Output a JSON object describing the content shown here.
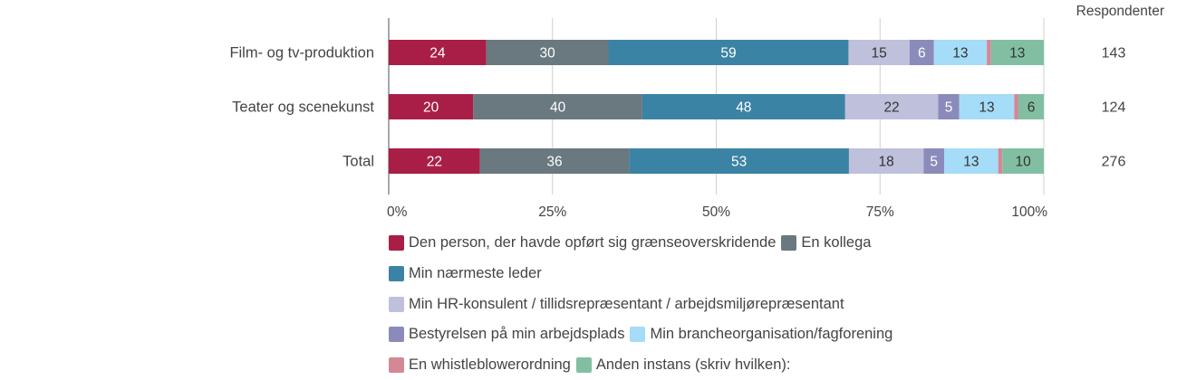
{
  "chart_data": {
    "type": "bar",
    "orientation": "horizontal",
    "stacked": "percent",
    "categories": [
      "Film- og tv-produktion",
      "Teater og scenekunst",
      "Total"
    ],
    "respondents_header": "Respondenter",
    "respondents": [
      "143",
      "124",
      "276"
    ],
    "series": [
      {
        "name": "Den person, der havde opført sig grænseoverskridende",
        "color": "#a91e46",
        "values": [
          24,
          20,
          22
        ]
      },
      {
        "name": "En kollega",
        "color": "#6a787f",
        "values": [
          30,
          40,
          36
        ]
      },
      {
        "name": "Min nærmeste leder",
        "color": "#3b83a4",
        "values": [
          59,
          48,
          53
        ]
      },
      {
        "name": "Min HR-konsulent / tillidsrepræsentant / arbejdsmiljørepræsentant",
        "color": "#bec0dc",
        "values": [
          15,
          22,
          18
        ]
      },
      {
        "name": "Bestyrelsen på min arbejdsplads",
        "color": "#8a8bbb",
        "values": [
          6,
          5,
          5
        ]
      },
      {
        "name": "Min brancheorganisation/fagforening",
        "color": "#a5dcf7",
        "values": [
          13,
          13,
          13
        ]
      },
      {
        "name": "En whistleblowerordning",
        "color": "#d48896",
        "values": [
          1,
          1,
          1
        ]
      },
      {
        "name": "Anden instans (skriv hvilken):",
        "color": "#82bfa2",
        "values": [
          13,
          6,
          10
        ]
      }
    ],
    "xlim": [
      0,
      100
    ],
    "xticks": [
      "0%",
      "25%",
      "50%",
      "75%",
      "100%"
    ],
    "grid": true,
    "legend_position": "bottom"
  }
}
